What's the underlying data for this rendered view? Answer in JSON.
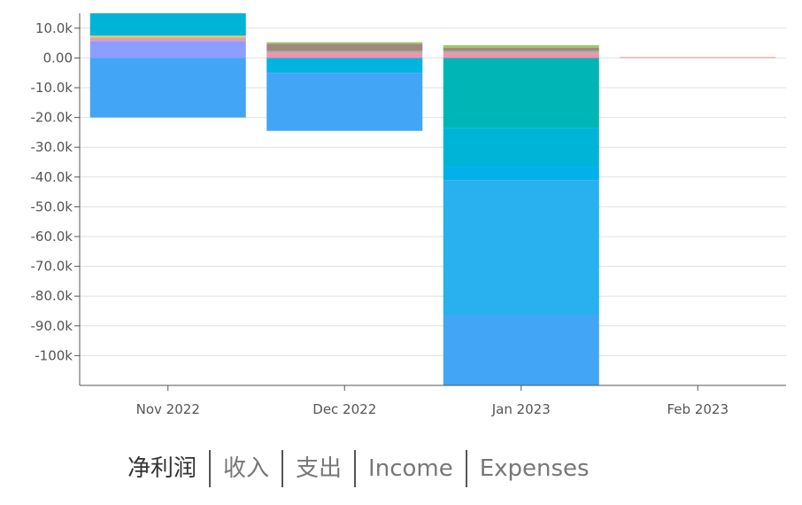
{
  "chart_data": {
    "type": "bar",
    "stacked": true,
    "categories": [
      "Nov 2022",
      "Dec 2022",
      "Jan 2023",
      "Feb 2023"
    ],
    "ylim": [
      -110000,
      15000
    ],
    "y_ticks": [
      10000,
      0,
      -10000,
      -20000,
      -30000,
      -40000,
      -50000,
      -60000,
      -70000,
      -80000,
      -90000,
      -100000
    ],
    "y_tick_labels": [
      "10.0k",
      "0.00",
      "-10.0k",
      "-20.0k",
      "-30.0k",
      "-40.0k",
      "-50.0k",
      "-60.0k",
      "-70.0k",
      "-80.0k",
      "-90.0k",
      "-100k"
    ],
    "grid": true,
    "segments": [
      {
        "category": "Nov 2022",
        "value": -20000,
        "color": "#42a5f5"
      },
      {
        "category": "Nov 2022",
        "value": 5500,
        "color": "#8c9eff"
      },
      {
        "category": "Nov 2022",
        "value": 500,
        "color": "#b39ddb"
      },
      {
        "category": "Nov 2022",
        "value": 500,
        "color": "#f48fb1"
      },
      {
        "category": "Nov 2022",
        "value": 400,
        "color": "#bcaaa4"
      },
      {
        "category": "Nov 2022",
        "value": 300,
        "color": "#cddc39"
      },
      {
        "category": "Nov 2022",
        "value": 300,
        "color": "#ffb74d"
      },
      {
        "category": "Nov 2022",
        "value": 7500,
        "color": "#00b4d8"
      },
      {
        "category": "Dec 2022",
        "value": -5000,
        "color": "#00b4e0"
      },
      {
        "category": "Dec 2022",
        "value": -19500,
        "color": "#42a5f5"
      },
      {
        "category": "Dec 2022",
        "value": 1500,
        "color": "#f48fb1"
      },
      {
        "category": "Dec 2022",
        "value": 800,
        "color": "#bcaaa4"
      },
      {
        "category": "Dec 2022",
        "value": 2500,
        "color": "#a1887f"
      },
      {
        "category": "Dec 2022",
        "value": 500,
        "color": "#9ccc65"
      },
      {
        "category": "Jan 2023",
        "value": -23500,
        "color": "#00b5b5"
      },
      {
        "category": "Jan 2023",
        "value": -13000,
        "color": "#00b4d8"
      },
      {
        "category": "Jan 2023",
        "value": -4500,
        "color": "#03b0ea"
      },
      {
        "category": "Jan 2023",
        "value": -45500,
        "color": "#29b0ee"
      },
      {
        "category": "Jan 2023",
        "value": -25500,
        "color": "#42a5f5"
      },
      {
        "category": "Jan 2023",
        "value": 1500,
        "color": "#f48fb1"
      },
      {
        "category": "Jan 2023",
        "value": 800,
        "color": "#bcaaa4"
      },
      {
        "category": "Jan 2023",
        "value": 1200,
        "color": "#a1887f"
      },
      {
        "category": "Jan 2023",
        "value": 800,
        "color": "#9ccc65"
      },
      {
        "category": "Feb 2023",
        "value": 300,
        "color": "#e0a090"
      }
    ],
    "colors": {
      "grid": "#e0e0e0",
      "axis": "#555555",
      "tick_text": "#555555"
    }
  },
  "legend": {
    "items": [
      "净利润",
      "收入",
      "支出",
      "Income",
      "Expenses"
    ],
    "active_index": 0
  }
}
